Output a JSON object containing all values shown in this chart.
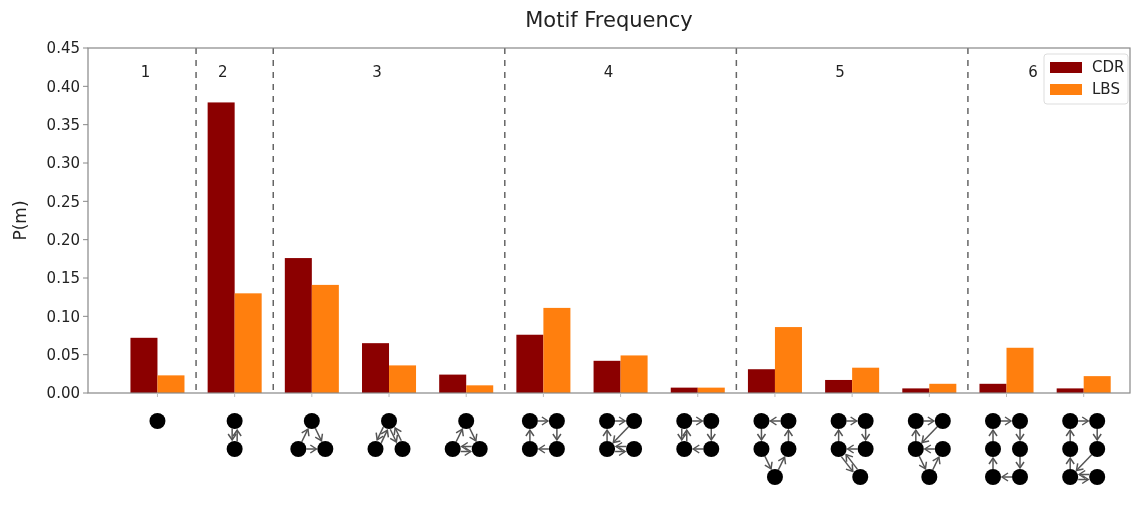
{
  "chart_data": {
    "type": "bar",
    "title": "Motif Frequency",
    "ylabel": "P(m)",
    "categories": [
      null,
      null,
      null,
      null,
      null,
      null,
      null,
      null,
      null,
      null,
      null,
      null,
      null
    ],
    "ylim": [
      0,
      0.45
    ],
    "yticks": [
      {
        "value": 0,
        "label": "0.00"
      },
      {
        "value": 0.05,
        "label": "0.05"
      },
      {
        "value": 0.1,
        "label": "0.10"
      },
      {
        "value": 0.15,
        "label": "0.15"
      },
      {
        "value": 0.2,
        "label": "0.20"
      },
      {
        "value": 0.25,
        "label": "0.25"
      },
      {
        "value": 0.3,
        "label": "0.30"
      },
      {
        "value": 0.35,
        "label": "0.35"
      },
      {
        "value": 0.4,
        "label": "0.40"
      },
      {
        "value": 0.45,
        "label": "0.45"
      }
    ],
    "grid": false,
    "legend": "top right",
    "series": [
      {
        "name": "CDR",
        "color": "#8b0000",
        "values": [
          0.072,
          0.379,
          0.176,
          0.065,
          0.024,
          0.076,
          0.042,
          0.007,
          0.031,
          0.017,
          0.006,
          0.012,
          0.006
        ]
      },
      {
        "name": "LBS",
        "color": "#ff7f0e",
        "values": [
          0.023,
          0.13,
          0.141,
          0.036,
          0.01,
          0.111,
          0.049,
          0.007,
          0.086,
          0.033,
          0.012,
          0.059,
          0.022
        ]
      }
    ],
    "annotations": [
      "1",
      "2",
      "3",
      "4",
      "5",
      "6"
    ]
  }
}
